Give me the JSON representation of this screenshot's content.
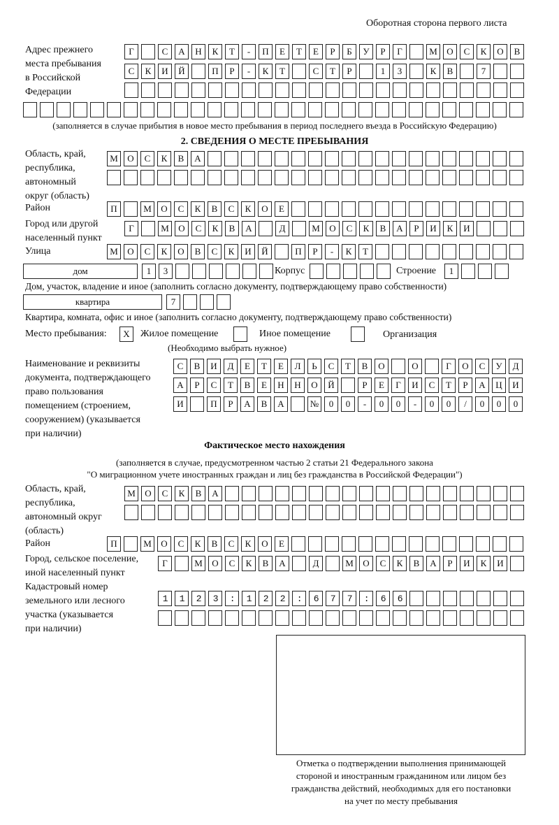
{
  "header": "Оборотная сторона первого листа",
  "prev_address": {
    "label": "Адрес прежнего\nместа пребывания\nв Российской\nФедерации",
    "rows": [
      "Г САНКТ-ПЕТЕРБУРГ МОСКОВ",
      "СКИЙ ПР-КТ СТР 13 КВ 7  ",
      "                        ",
      "                              "
    ],
    "note": "(заполняется в случае прибытия в новое место пребывания в период последнего въезда в Российскую Федерацию)"
  },
  "section2": {
    "title": "2. СВЕДЕНИЯ О МЕСТЕ ПРЕБЫВАНИЯ",
    "region_label": "Область, край,\nреспублика,\nавтономный\nокруг (область)",
    "region_rows": [
      "МОСКВА                   ",
      "                         "
    ],
    "district_label": "Район",
    "district": "П МОСКВСКОЕ              ",
    "city_label": "Город или другой\nнаселенный пункт",
    "city": "Г МОСКВА Д МОСКВАРИКИ   ",
    "street_label": "Улица",
    "street": "МОСКОВСКИЙ ПР-КТ         ",
    "house_type": "дом",
    "house_number": "13      ",
    "korpus_label": "Корпус",
    "korpus": "     ",
    "building_label": "Строение",
    "building": "1   ",
    "house_note": "Дом, участок, владение и иное (заполнить согласно документу, подтверждающему право собственности)",
    "apt_type": "квартира",
    "apt_number": "7   ",
    "apt_note": "Квартира, комната, офис и иное (заполнить согласно документу, подтверждающему право собственности)",
    "place_label": "Место пребывания:",
    "place_options": [
      {
        "mark": "X",
        "label": "Жилое помещение"
      },
      {
        "mark": "",
        "label": "Иное помещение"
      },
      {
        "mark": "",
        "label": "Организация"
      }
    ],
    "place_note": "(Необходимо выбрать нужное)",
    "doc_label": "Наименование и реквизиты\nдокумента, подтверждающего\nправо пользования\nпомещением (строением,\nсооружением) (указывается\nпри наличии)",
    "doc_rows": [
      "СВИДЕТЕЛЬСТВО О ГОСУД",
      "АРСТВЕННОЙ РЕГИСТРАЦИ",
      "И ПРАВА №00-00-00/000"
    ]
  },
  "actual": {
    "title": "Фактическое место нахождения",
    "note": "(заполняется в случае, предусмотренном частью 2 статьи 21 Федерального закона\n\"О миграционном учете иностранных граждан и лиц без гражданства в Российской Федерации\")",
    "region_label": "Область, край,\nреспублика,\nавтономный округ\n(область)",
    "region_rows": [
      "МОСКВА                  ",
      "                        "
    ],
    "district_label": "Район",
    "district": "П МОСКВСКОЕ              ",
    "city_label": "Город, сельское поселение,\nиной населенный пункт",
    "city": "Г МОСКВА Д МОСКВАРИКИ ",
    "cadastral_label": "Кадастровый номер\nземельного или лесного\nучастка (указывается\nпри наличии)",
    "cadastral_rows": [
      "1123:122:677:66       ",
      "                      "
    ]
  },
  "confirmation_caption": "Отметка о подтверждении выполнения принимающей\nстороной и иностранным гражданином или лицом без\nгражданства действий, необходимых для его постановки\nна учет по месту пребывания"
}
